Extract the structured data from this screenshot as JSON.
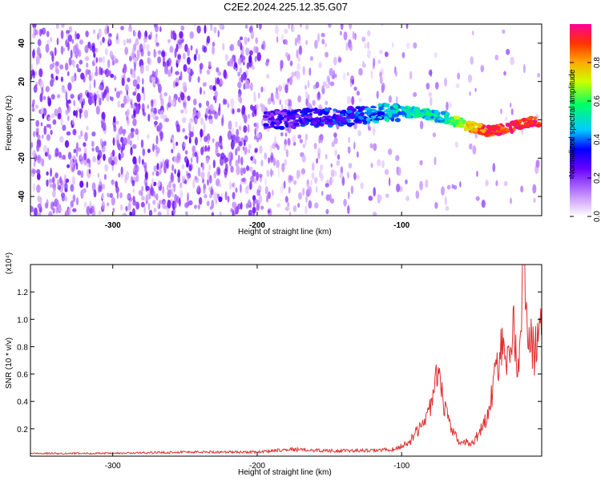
{
  "figure_title": "C2E2.2024.225.12.35.G07",
  "chart_data": [
    {
      "type": "heatmap",
      "xlabel": "Height of straight line (km)",
      "ylabel": "Frequency (Hz)",
      "xlim": [
        -357,
        -3
      ],
      "ylim": [
        -50,
        50
      ],
      "xticks": [
        -300,
        -200,
        -100
      ],
      "yticks": [
        -40,
        -20,
        0,
        20,
        40
      ],
      "colorbar": {
        "label": "Normalized spectral amplitude",
        "range": [
          0.0,
          1.0
        ],
        "ticks": [
          0.0,
          0.2,
          0.4,
          0.6,
          0.8
        ],
        "colors": [
          "#ffffff",
          "#cc99ff",
          "#6600ff",
          "#0000ff",
          "#00ccff",
          "#00ff66",
          "#ccff00",
          "#ffaa00",
          "#ff3300",
          "#ff0099"
        ]
      },
      "ridge": {
        "description_points_x": [
          -190,
          -160,
          -130,
          -110,
          -90,
          -70,
          -55,
          -40,
          -25,
          -10
        ],
        "frequency": [
          0,
          1,
          2,
          4,
          4,
          1,
          -3,
          -6,
          -4,
          -1
        ],
        "amplitude": [
          0.25,
          0.3,
          0.35,
          0.45,
          0.5,
          0.5,
          0.75,
          0.9,
          0.95,
          0.95
        ]
      }
    },
    {
      "type": "line",
      "xlabel": "Height of straight line (km)",
      "ylabel": "SNR (10 * v/v)",
      "exponent_label": "(x10⁴)",
      "xlim": [
        -357,
        -3
      ],
      "ylim": [
        0,
        1.4
      ],
      "xticks": [
        -300,
        -200,
        -100
      ],
      "yticks": [
        0.2,
        0.4,
        0.6,
        0.8,
        1.0,
        1.2
      ],
      "series": [
        {
          "color": "#e03030",
          "x": [
            -357,
            -340,
            -300,
            -250,
            -200,
            -180,
            -150,
            -120,
            -105,
            -95,
            -88,
            -82,
            -78,
            -75,
            -73,
            -70,
            -66,
            -60,
            -50,
            -45,
            -40,
            -36,
            -32,
            -30,
            -26,
            -22,
            -20,
            -18,
            -16,
            -12,
            -8,
            -5,
            -3
          ],
          "y": [
            0.02,
            0.02,
            0.02,
            0.03,
            0.03,
            0.05,
            0.04,
            0.04,
            0.05,
            0.1,
            0.2,
            0.3,
            0.45,
            0.6,
            0.5,
            0.35,
            0.2,
            0.1,
            0.1,
            0.2,
            0.3,
            0.55,
            0.75,
            0.85,
            0.65,
            1.05,
            0.5,
            0.85,
            1.35,
            0.9,
            0.75,
            0.95,
            0.85
          ]
        }
      ]
    }
  ]
}
